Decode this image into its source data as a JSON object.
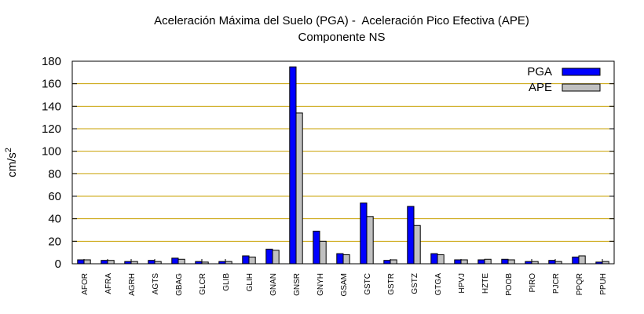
{
  "chart_data": {
    "type": "bar",
    "title": "Aceleración Máxima del Suelo (PGA) -  Aceleración Pico Efectiva (APE)",
    "subtitle": "Componente NS",
    "ylabel": "cm/s",
    "ylabel_superscript": "2",
    "xlabel": "",
    "ylim": [
      0,
      180
    ],
    "yticks": [
      0,
      20,
      40,
      60,
      80,
      100,
      120,
      140,
      160,
      180
    ],
    "grid": true,
    "legend_position": "top-right",
    "categories": [
      "AFOR",
      "AFRA",
      "AGRH",
      "AGTS",
      "GBAG",
      "GLCR",
      "GLIB",
      "GLIH",
      "GNAN",
      "GNSR",
      "GNYH",
      "GSAM",
      "GSTC",
      "GSTR",
      "GSTZ",
      "GTGA",
      "HPVJ",
      "HZTE",
      "POOB",
      "PIRO",
      "PJCR",
      "PPQR",
      "PPUH"
    ],
    "series": [
      {
        "name": "PGA",
        "color": "#0000ff",
        "values": [
          3.5,
          3,
          2,
          3,
          5,
          2,
          2,
          7,
          13,
          175,
          29,
          9,
          54,
          3,
          51,
          9,
          3.5,
          3.5,
          4,
          2,
          3,
          6,
          1.5
        ]
      },
      {
        "name": "APE",
        "color": "#c0c0c0",
        "values": [
          3.5,
          3,
          2,
          2,
          4,
          1.5,
          2,
          6,
          12,
          134,
          20,
          8,
          42,
          3.5,
          34,
          8,
          3.5,
          4,
          3.5,
          2,
          2,
          7,
          2
        ]
      }
    ],
    "grid_color": "#c8a000"
  }
}
